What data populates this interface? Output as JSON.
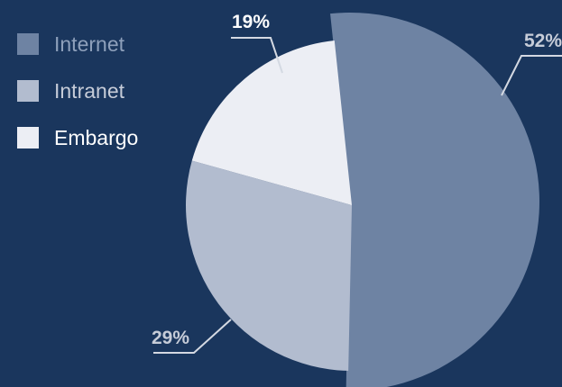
{
  "colors": {
    "background": "#1a365d",
    "label_text": "#c6ccd8",
    "leader_line": "#d4d9e2"
  },
  "chart_data": {
    "type": "pie",
    "start_angle_deg": -6,
    "direction": "clockwise",
    "legend_position": "top-left",
    "slices": [
      {
        "name": "Internet",
        "value": 52,
        "label": "52%",
        "color": "#6e83a3",
        "legend_text_color": "#8ea0bb",
        "exploded": true
      },
      {
        "name": "Intranet",
        "value": 29,
        "label": "29%",
        "color": "#b2bccf",
        "legend_text_color": "#c6ccd8",
        "exploded": false
      },
      {
        "name": "Embargo",
        "value": 19,
        "label": "19%",
        "color": "#eceef4",
        "legend_text_color": "#ffffff",
        "exploded": false
      }
    ]
  }
}
